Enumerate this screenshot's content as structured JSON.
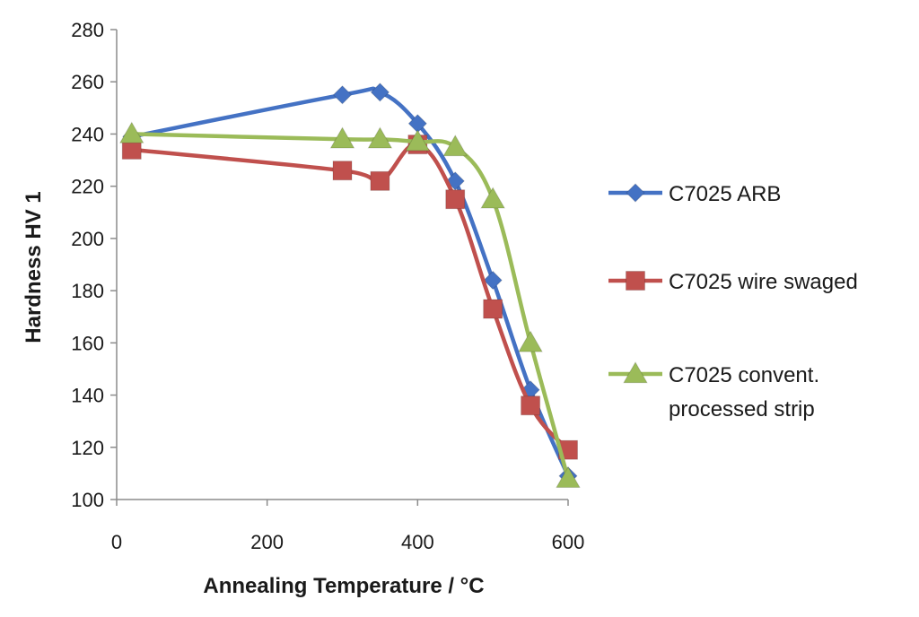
{
  "chart_data": {
    "type": "line",
    "title": "",
    "xlabel": "Annealing Temperature /  °C",
    "ylabel": "Hardness HV 1",
    "xlim": [
      0,
      600
    ],
    "ylim": [
      100,
      280
    ],
    "xticks": [
      0,
      200,
      400,
      600
    ],
    "yticks": [
      100,
      120,
      140,
      160,
      180,
      200,
      220,
      240,
      260,
      280
    ],
    "xtick_labels": [
      "0",
      "200",
      "400",
      "600"
    ],
    "ytick_labels": [
      "100",
      "120",
      "140",
      "160",
      "180",
      "200",
      "220",
      "240",
      "260",
      "280"
    ],
    "grid": false,
    "legend_position": "right",
    "series": [
      {
        "name": "C7025 ARB",
        "legend_lines": [
          "C7025 ARB"
        ],
        "color": "#4472c4",
        "marker": "diamond",
        "x": [
          20,
          300,
          350,
          400,
          450,
          500,
          550,
          600
        ],
        "y": [
          239,
          255,
          256,
          244,
          222,
          184,
          142,
          109
        ]
      },
      {
        "name": "C7025 wire swaged",
        "legend_lines": [
          "C7025 wire swaged"
        ],
        "color": "#c0504d",
        "marker": "square",
        "x": [
          20,
          300,
          350,
          400,
          450,
          500,
          550,
          600
        ],
        "y": [
          234,
          226,
          222,
          236,
          215,
          173,
          136,
          119
        ]
      },
      {
        "name": "C7025 convent. processed strip",
        "legend_lines": [
          "C7025 convent.",
          "processed strip"
        ],
        "color": "#9bbb59",
        "marker": "triangle",
        "x": [
          20,
          300,
          350,
          400,
          450,
          500,
          550,
          600
        ],
        "y": [
          240,
          238,
          238,
          237,
          235,
          215,
          160,
          108
        ]
      }
    ]
  }
}
